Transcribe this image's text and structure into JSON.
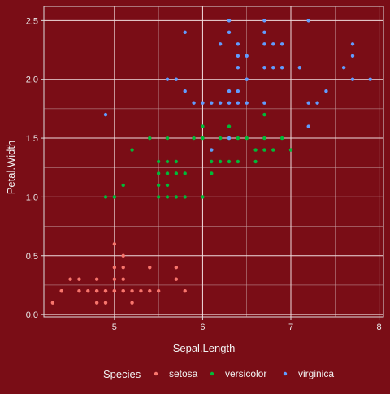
{
  "chart_data": {
    "type": "scatter",
    "xlabel": "Sepal.Length",
    "ylabel": "Petal.Width",
    "xlim": [
      4.2,
      8.05
    ],
    "ylim": [
      -0.02,
      2.62
    ],
    "x_ticks": [
      5,
      6,
      7,
      8
    ],
    "y_ticks": [
      0.0,
      0.5,
      1.0,
      1.5,
      2.0,
      2.5
    ],
    "x_tick_labels": [
      "5",
      "6",
      "7",
      "8"
    ],
    "y_tick_labels": [
      "0.0",
      "0.5",
      "1.0",
      "1.5",
      "2.0",
      "2.5"
    ],
    "grid": true,
    "legend_position": "bottom",
    "legend_title": "Species",
    "series": [
      {
        "name": "setosa",
        "color": "#f8766d",
        "points": [
          [
            4.3,
            0.1
          ],
          [
            4.4,
            0.2
          ],
          [
            4.4,
            0.2
          ],
          [
            4.6,
            0.2
          ],
          [
            4.6,
            0.3
          ],
          [
            4.7,
            0.2
          ],
          [
            4.8,
            0.2
          ],
          [
            4.8,
            0.1
          ],
          [
            4.9,
            0.1
          ],
          [
            4.9,
            0.2
          ],
          [
            4.8,
            0.3
          ],
          [
            4.5,
            0.3
          ],
          [
            5.0,
            0.2
          ],
          [
            5.0,
            0.3
          ],
          [
            5.0,
            0.4
          ],
          [
            5.0,
            0.6
          ],
          [
            5.0,
            0.2
          ],
          [
            5.1,
            0.2
          ],
          [
            5.1,
            0.3
          ],
          [
            5.1,
            0.4
          ],
          [
            5.1,
            0.5
          ],
          [
            5.2,
            0.1
          ],
          [
            5.2,
            0.2
          ],
          [
            5.3,
            0.2
          ],
          [
            5.4,
            0.2
          ],
          [
            5.4,
            0.4
          ],
          [
            5.5,
            0.2
          ],
          [
            5.7,
            0.3
          ],
          [
            5.7,
            0.4
          ],
          [
            5.8,
            0.2
          ],
          [
            4.8,
            0.2
          ],
          [
            4.9,
            0.2
          ],
          [
            5.0,
            0.2
          ],
          [
            5.1,
            0.2
          ]
        ]
      },
      {
        "name": "versicolor",
        "color": "#00ba38",
        "points": [
          [
            4.9,
            1.0
          ],
          [
            5.0,
            1.0
          ],
          [
            5.0,
            1.0
          ],
          [
            5.1,
            1.1
          ],
          [
            5.2,
            1.4
          ],
          [
            5.4,
            1.5
          ],
          [
            5.5,
            1.0
          ],
          [
            5.5,
            1.1
          ],
          [
            5.5,
            1.2
          ],
          [
            5.5,
            1.3
          ],
          [
            5.6,
            1.0
          ],
          [
            5.6,
            1.1
          ],
          [
            5.6,
            1.2
          ],
          [
            5.6,
            1.3
          ],
          [
            5.6,
            1.5
          ],
          [
            5.7,
            1.0
          ],
          [
            5.7,
            1.2
          ],
          [
            5.7,
            1.3
          ],
          [
            5.8,
            1.0
          ],
          [
            5.8,
            1.2
          ],
          [
            5.9,
            1.5
          ],
          [
            6.0,
            1.0
          ],
          [
            6.0,
            1.5
          ],
          [
            6.0,
            1.6
          ],
          [
            6.1,
            1.2
          ],
          [
            6.1,
            1.3
          ],
          [
            6.1,
            1.4
          ],
          [
            6.2,
            1.3
          ],
          [
            6.2,
            1.5
          ],
          [
            6.3,
            1.3
          ],
          [
            6.3,
            1.5
          ],
          [
            6.3,
            1.6
          ],
          [
            6.4,
            1.3
          ],
          [
            6.4,
            1.5
          ],
          [
            6.5,
            1.5
          ],
          [
            6.6,
            1.3
          ],
          [
            6.6,
            1.4
          ],
          [
            6.7,
            1.4
          ],
          [
            6.7,
            1.5
          ],
          [
            6.7,
            1.7
          ],
          [
            6.8,
            1.4
          ],
          [
            6.9,
            1.5
          ],
          [
            7.0,
            1.4
          ]
        ]
      },
      {
        "name": "virginica",
        "color": "#619cff",
        "points": [
          [
            4.9,
            1.7
          ],
          [
            5.6,
            2.0
          ],
          [
            5.7,
            2.0
          ],
          [
            5.8,
            1.9
          ],
          [
            5.8,
            2.4
          ],
          [
            5.9,
            1.8
          ],
          [
            6.0,
            1.8
          ],
          [
            6.1,
            1.8
          ],
          [
            6.1,
            1.4
          ],
          [
            6.2,
            1.8
          ],
          [
            6.2,
            2.3
          ],
          [
            6.3,
            1.5
          ],
          [
            6.3,
            1.8
          ],
          [
            6.3,
            1.9
          ],
          [
            6.3,
            2.4
          ],
          [
            6.3,
            2.5
          ],
          [
            6.4,
            1.8
          ],
          [
            6.4,
            1.9
          ],
          [
            6.4,
            2.1
          ],
          [
            6.4,
            2.2
          ],
          [
            6.4,
            2.3
          ],
          [
            6.5,
            1.8
          ],
          [
            6.5,
            2.2
          ],
          [
            6.5,
            2.0
          ],
          [
            6.7,
            1.8
          ],
          [
            6.7,
            2.1
          ],
          [
            6.7,
            2.3
          ],
          [
            6.7,
            2.4
          ],
          [
            6.7,
            2.5
          ],
          [
            6.8,
            2.1
          ],
          [
            6.8,
            2.3
          ],
          [
            6.9,
            2.1
          ],
          [
            6.9,
            2.3
          ],
          [
            7.1,
            2.1
          ],
          [
            7.2,
            1.6
          ],
          [
            7.2,
            1.8
          ],
          [
            7.2,
            2.5
          ],
          [
            7.3,
            1.8
          ],
          [
            7.4,
            1.9
          ],
          [
            7.6,
            2.1
          ],
          [
            7.7,
            2.0
          ],
          [
            7.7,
            2.2
          ],
          [
            7.7,
            2.3
          ],
          [
            7.9,
            2.0
          ]
        ]
      }
    ]
  }
}
